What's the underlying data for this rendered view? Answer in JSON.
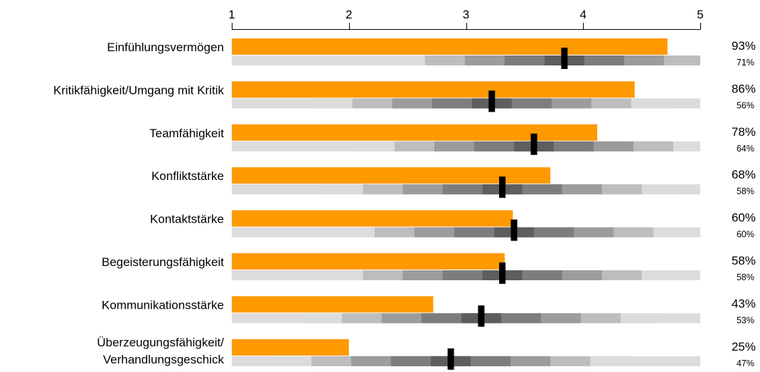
{
  "chart_data": {
    "type": "bar",
    "orientation": "horizontal",
    "xlim": [
      1,
      5
    ],
    "ticks": [
      "1",
      "2",
      "3",
      "4",
      "5"
    ],
    "tick_values": [
      1,
      2,
      3,
      4,
      5
    ],
    "grid": false,
    "bar_color": "#ff9900",
    "marker_color": "#000000",
    "band_colors": [
      "#dcdcdc",
      "#bdbdbd",
      "#9c9c9c",
      "#7d7d7d",
      "#5e5e5e"
    ],
    "categories": [
      [
        "Einfühlungsvermögen"
      ],
      [
        "Kritikfähigkeit/Umgang mit Kritik"
      ],
      [
        "Teamfähigkeit"
      ],
      [
        "Konfliktstärke"
      ],
      [
        "Kontaktstärke"
      ],
      [
        "Begeisterungsfähigkeit"
      ],
      [
        "Kommunikationsstärke"
      ],
      [
        "Überzeugungsfähigkeit/",
        "Verhandlungsgeschick"
      ]
    ],
    "values": [
      4.72,
      4.44,
      4.12,
      3.72,
      3.4,
      3.33,
      2.72,
      2.0
    ],
    "percent_labels": [
      "93%",
      "86%",
      "78%",
      "68%",
      "60%",
      "58%",
      "43%",
      "25%"
    ],
    "reference_values": [
      3.84,
      3.22,
      3.58,
      3.31,
      3.41,
      3.31,
      3.13,
      2.87
    ],
    "reference_labels": [
      "71%",
      "56%",
      "64%",
      "58%",
      "60%",
      "58%",
      "53%",
      "47%"
    ]
  }
}
